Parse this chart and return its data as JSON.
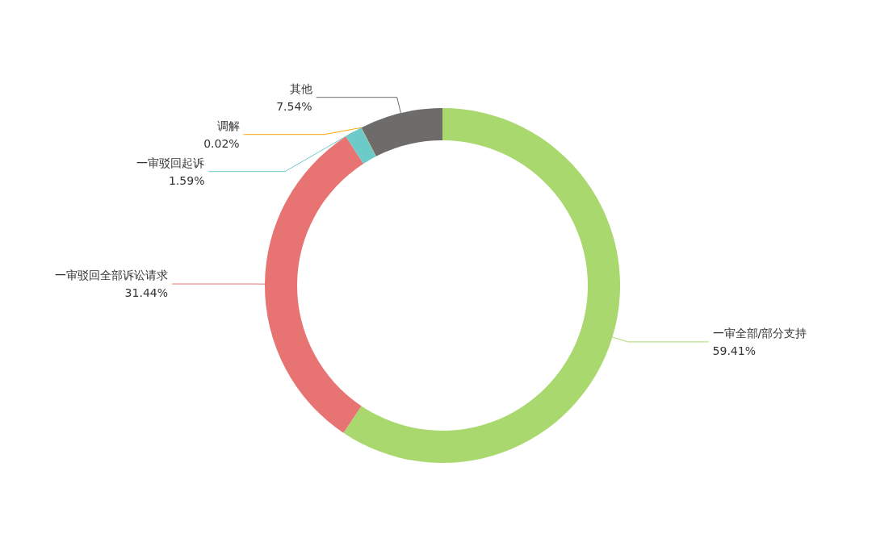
{
  "chart_data": {
    "type": "donut",
    "categories": [
      "一审全部/部分支持",
      "一审驳回全部诉讼请求",
      "一审驳回起诉",
      "调解",
      "其他"
    ],
    "values": [
      59.41,
      31.44,
      1.59,
      0.02,
      7.54
    ],
    "value_labels": [
      "59.41%",
      "31.44%",
      "1.59%",
      "0.02%",
      "7.54%"
    ],
    "colors": [
      "#a9d86e",
      "#e77472",
      "#6ccac9",
      "#ffa500",
      "#6e6b6b"
    ],
    "legend": false
  }
}
